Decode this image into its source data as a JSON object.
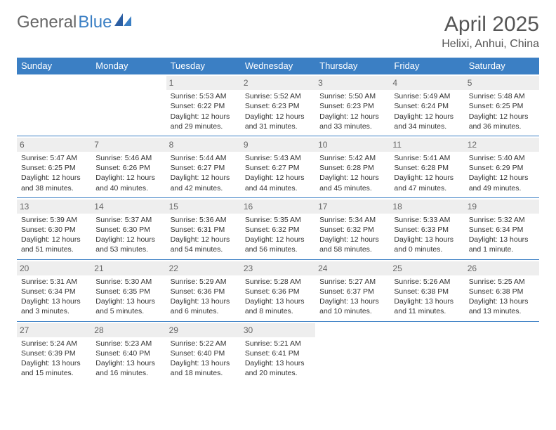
{
  "brand": {
    "part1": "General",
    "part2": "Blue"
  },
  "title": "April 2025",
  "location": "Helixi, Anhui, China",
  "colors": {
    "header_bg": "#3b7fc4",
    "header_text": "#ffffff",
    "daynum_bg": "#eeeeee",
    "border": "#3b7fc4",
    "text": "#333333"
  },
  "day_headers": [
    "Sunday",
    "Monday",
    "Tuesday",
    "Wednesday",
    "Thursday",
    "Friday",
    "Saturday"
  ],
  "weeks": [
    [
      null,
      null,
      {
        "n": "1",
        "sr": "Sunrise: 5:53 AM",
        "ss": "Sunset: 6:22 PM",
        "dl": "Daylight: 12 hours and 29 minutes."
      },
      {
        "n": "2",
        "sr": "Sunrise: 5:52 AM",
        "ss": "Sunset: 6:23 PM",
        "dl": "Daylight: 12 hours and 31 minutes."
      },
      {
        "n": "3",
        "sr": "Sunrise: 5:50 AM",
        "ss": "Sunset: 6:23 PM",
        "dl": "Daylight: 12 hours and 33 minutes."
      },
      {
        "n": "4",
        "sr": "Sunrise: 5:49 AM",
        "ss": "Sunset: 6:24 PM",
        "dl": "Daylight: 12 hours and 34 minutes."
      },
      {
        "n": "5",
        "sr": "Sunrise: 5:48 AM",
        "ss": "Sunset: 6:25 PM",
        "dl": "Daylight: 12 hours and 36 minutes."
      }
    ],
    [
      {
        "n": "6",
        "sr": "Sunrise: 5:47 AM",
        "ss": "Sunset: 6:25 PM",
        "dl": "Daylight: 12 hours and 38 minutes."
      },
      {
        "n": "7",
        "sr": "Sunrise: 5:46 AM",
        "ss": "Sunset: 6:26 PM",
        "dl": "Daylight: 12 hours and 40 minutes."
      },
      {
        "n": "8",
        "sr": "Sunrise: 5:44 AM",
        "ss": "Sunset: 6:27 PM",
        "dl": "Daylight: 12 hours and 42 minutes."
      },
      {
        "n": "9",
        "sr": "Sunrise: 5:43 AM",
        "ss": "Sunset: 6:27 PM",
        "dl": "Daylight: 12 hours and 44 minutes."
      },
      {
        "n": "10",
        "sr": "Sunrise: 5:42 AM",
        "ss": "Sunset: 6:28 PM",
        "dl": "Daylight: 12 hours and 45 minutes."
      },
      {
        "n": "11",
        "sr": "Sunrise: 5:41 AM",
        "ss": "Sunset: 6:28 PM",
        "dl": "Daylight: 12 hours and 47 minutes."
      },
      {
        "n": "12",
        "sr": "Sunrise: 5:40 AM",
        "ss": "Sunset: 6:29 PM",
        "dl": "Daylight: 12 hours and 49 minutes."
      }
    ],
    [
      {
        "n": "13",
        "sr": "Sunrise: 5:39 AM",
        "ss": "Sunset: 6:30 PM",
        "dl": "Daylight: 12 hours and 51 minutes."
      },
      {
        "n": "14",
        "sr": "Sunrise: 5:37 AM",
        "ss": "Sunset: 6:30 PM",
        "dl": "Daylight: 12 hours and 53 minutes."
      },
      {
        "n": "15",
        "sr": "Sunrise: 5:36 AM",
        "ss": "Sunset: 6:31 PM",
        "dl": "Daylight: 12 hours and 54 minutes."
      },
      {
        "n": "16",
        "sr": "Sunrise: 5:35 AM",
        "ss": "Sunset: 6:32 PM",
        "dl": "Daylight: 12 hours and 56 minutes."
      },
      {
        "n": "17",
        "sr": "Sunrise: 5:34 AM",
        "ss": "Sunset: 6:32 PM",
        "dl": "Daylight: 12 hours and 58 minutes."
      },
      {
        "n": "18",
        "sr": "Sunrise: 5:33 AM",
        "ss": "Sunset: 6:33 PM",
        "dl": "Daylight: 13 hours and 0 minutes."
      },
      {
        "n": "19",
        "sr": "Sunrise: 5:32 AM",
        "ss": "Sunset: 6:34 PM",
        "dl": "Daylight: 13 hours and 1 minute."
      }
    ],
    [
      {
        "n": "20",
        "sr": "Sunrise: 5:31 AM",
        "ss": "Sunset: 6:34 PM",
        "dl": "Daylight: 13 hours and 3 minutes."
      },
      {
        "n": "21",
        "sr": "Sunrise: 5:30 AM",
        "ss": "Sunset: 6:35 PM",
        "dl": "Daylight: 13 hours and 5 minutes."
      },
      {
        "n": "22",
        "sr": "Sunrise: 5:29 AM",
        "ss": "Sunset: 6:36 PM",
        "dl": "Daylight: 13 hours and 6 minutes."
      },
      {
        "n": "23",
        "sr": "Sunrise: 5:28 AM",
        "ss": "Sunset: 6:36 PM",
        "dl": "Daylight: 13 hours and 8 minutes."
      },
      {
        "n": "24",
        "sr": "Sunrise: 5:27 AM",
        "ss": "Sunset: 6:37 PM",
        "dl": "Daylight: 13 hours and 10 minutes."
      },
      {
        "n": "25",
        "sr": "Sunrise: 5:26 AM",
        "ss": "Sunset: 6:38 PM",
        "dl": "Daylight: 13 hours and 11 minutes."
      },
      {
        "n": "26",
        "sr": "Sunrise: 5:25 AM",
        "ss": "Sunset: 6:38 PM",
        "dl": "Daylight: 13 hours and 13 minutes."
      }
    ],
    [
      {
        "n": "27",
        "sr": "Sunrise: 5:24 AM",
        "ss": "Sunset: 6:39 PM",
        "dl": "Daylight: 13 hours and 15 minutes."
      },
      {
        "n": "28",
        "sr": "Sunrise: 5:23 AM",
        "ss": "Sunset: 6:40 PM",
        "dl": "Daylight: 13 hours and 16 minutes."
      },
      {
        "n": "29",
        "sr": "Sunrise: 5:22 AM",
        "ss": "Sunset: 6:40 PM",
        "dl": "Daylight: 13 hours and 18 minutes."
      },
      {
        "n": "30",
        "sr": "Sunrise: 5:21 AM",
        "ss": "Sunset: 6:41 PM",
        "dl": "Daylight: 13 hours and 20 minutes."
      },
      null,
      null,
      null
    ]
  ]
}
